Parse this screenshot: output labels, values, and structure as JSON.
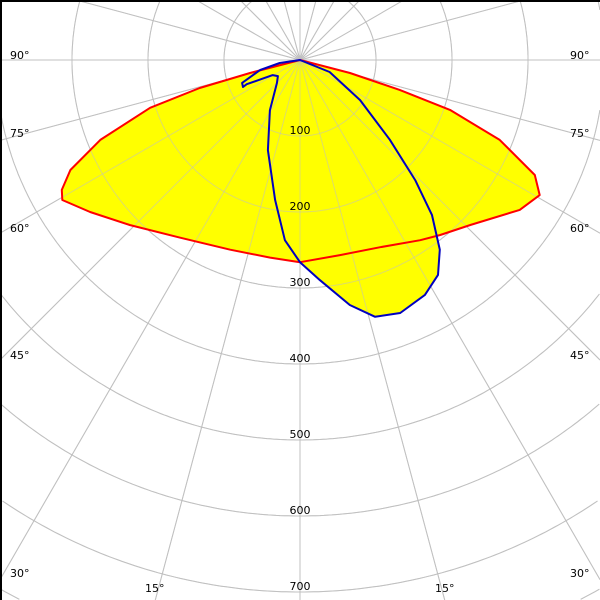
{
  "chart_data": {
    "type": "polar-line",
    "angle_unit": "degrees",
    "angle_zero": "down",
    "radial_range": [
      0,
      1000
    ],
    "radial_ticks": [
      100,
      200,
      300,
      400,
      500,
      600,
      700
    ],
    "radial_tick_labels": [
      "100",
      "200",
      "300",
      "400",
      "500",
      "600",
      "700"
    ],
    "angle_grid_step": 15,
    "angle_labels_left": [
      "90°",
      "75°",
      "60°",
      "45°",
      "30°",
      "15°"
    ],
    "angle_labels_right": [
      "90°",
      "75°",
      "60°",
      "45°",
      "30°",
      "15°"
    ],
    "grid": true,
    "fill_color": "#ffff00",
    "grid_color": "#c0c0c0",
    "series": [
      {
        "color": "#ff0000",
        "points": [
          [
            -90,
            0
          ],
          [
            -75.4,
            68
          ],
          [
            -74.4,
            137
          ],
          [
            -72.3,
            207
          ],
          [
            -68.2,
            283
          ],
          [
            -64.4,
            335
          ],
          [
            -61.4,
            357
          ],
          [
            -59.5,
            363
          ],
          [
            -54.1,
            341
          ],
          [
            -45.9,
            312
          ],
          [
            -34,
            282
          ],
          [
            -20.2,
            266
          ],
          [
            -8.6,
            263
          ],
          [
            0,
            266
          ],
          [
            11.6,
            262
          ],
          [
            23.2,
            268
          ],
          [
            33.7,
            285
          ],
          [
            38.7,
            295
          ],
          [
            45.9,
            312
          ],
          [
            55.7,
            350
          ],
          [
            60.6,
            362
          ],
          [
            63.9,
            344
          ],
          [
            68.2,
            283
          ],
          [
            71.6,
            208
          ],
          [
            73.3,
            137
          ],
          [
            75.4,
            68
          ],
          [
            90,
            0
          ]
        ]
      },
      {
        "color": "#0000c0",
        "points": [
          [
            90,
            0
          ],
          [
            68,
            42
          ],
          [
            56.3,
            95
          ],
          [
            48.4,
            158
          ],
          [
            43.8,
            219
          ],
          [
            40.4,
            268
          ],
          [
            36.4,
            310
          ],
          [
            32.7,
            336
          ],
          [
            28,
            350
          ],
          [
            21.6,
            358
          ],
          [
            16.3,
            352
          ],
          [
            11.5,
            329
          ],
          [
            5.2,
            291
          ],
          [
            0,
            266
          ],
          [
            -4.8,
            238
          ],
          [
            -10.1,
            187
          ],
          [
            -19.6,
            126
          ],
          [
            -31,
            77
          ],
          [
            -45,
            43
          ],
          [
            -54,
            36
          ],
          [
            -61,
            41
          ],
          [
            -65.6,
            77
          ],
          [
            -64.7,
            83
          ],
          [
            -68.4,
            82
          ],
          [
            -76,
            54
          ],
          [
            -81.5,
            27
          ],
          [
            -90,
            0
          ]
        ]
      }
    ]
  }
}
